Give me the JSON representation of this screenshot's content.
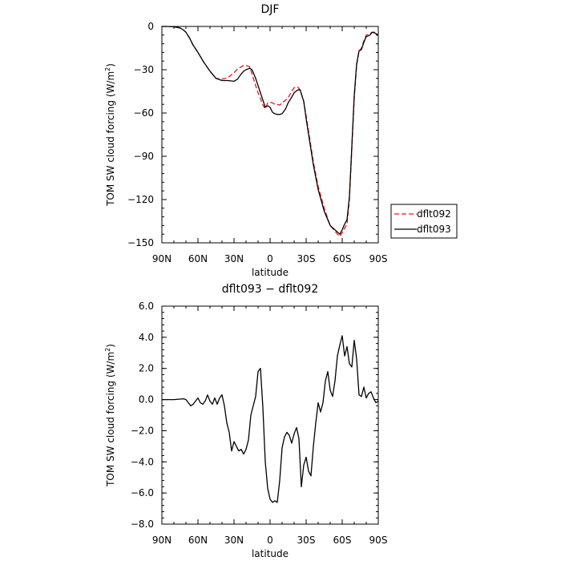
{
  "chart_data": [
    {
      "type": "line",
      "title": "DJF",
      "xlabel": "latitude",
      "ylabel": "TOM SW cloud forcing (W/m²)",
      "ylabel_parts": [
        "TOM SW cloud forcing (W/m",
        "2",
        ")"
      ],
      "xlim": [
        90,
        -90
      ],
      "ylim": [
        -150,
        0
      ],
      "x_ticks": [
        90,
        60,
        30,
        0,
        -30,
        -60,
        -90
      ],
      "x_tick_labels": [
        "90N",
        "60N",
        "30N",
        "0",
        "30S",
        "60S",
        "90S"
      ],
      "y_ticks": [
        0,
        -30,
        -60,
        -90,
        -120,
        -150
      ],
      "y_tick_labels": [
        "0",
        "−30",
        "−60",
        "−90",
        "−120",
        "−150"
      ],
      "legend": "right",
      "grid": false,
      "series": [
        {
          "name": "dflt092",
          "color": "#e41a1c",
          "dash": "6,3",
          "x": [
            90,
            85,
            80,
            75,
            72,
            70,
            67,
            64,
            60,
            55,
            50,
            45,
            40,
            35,
            30,
            27,
            25,
            22,
            20,
            17,
            15,
            12,
            10,
            8,
            6,
            4,
            2,
            0,
            -2,
            -4,
            -6,
            -8,
            -10,
            -13,
            -15,
            -18,
            -20,
            -23,
            -25,
            -28,
            -30,
            -33,
            -36,
            -40,
            -45,
            -50,
            -54,
            -56,
            -58,
            -60,
            -62,
            -64,
            -66,
            -68,
            -70,
            -72,
            -74,
            -76,
            -78,
            -80,
            -83,
            -85,
            -87,
            -90
          ],
          "y": [
            0,
            0,
            -0.3,
            -1,
            -2.5,
            -4,
            -8,
            -13,
            -18,
            -25,
            -31,
            -36,
            -36.5,
            -35.5,
            -32,
            -29.5,
            -28.5,
            -27,
            -27,
            -28,
            -33,
            -41,
            -46,
            -50,
            -54.5,
            -57,
            -53,
            -52.5,
            -53,
            -54,
            -54,
            -54.5,
            -53,
            -51,
            -49.5,
            -45,
            -42.5,
            -42,
            -44,
            -52,
            -62,
            -78,
            -94,
            -111,
            -126,
            -138,
            -142,
            -144,
            -145.5,
            -143,
            -140,
            -137,
            -120,
            -85,
            -50,
            -27,
            -17,
            -15,
            -10,
            -6,
            -5,
            -4,
            -4,
            -6
          ]
        },
        {
          "name": "dflt093",
          "color": "#000000",
          "dash": "",
          "x": [
            90,
            85,
            80,
            75,
            72,
            70,
            67,
            64,
            60,
            55,
            50,
            45,
            40,
            35,
            30,
            27,
            25,
            22,
            20,
            17,
            15,
            12,
            10,
            8,
            6,
            4,
            2,
            0,
            -2,
            -4,
            -6,
            -8,
            -10,
            -13,
            -15,
            -18,
            -20,
            -23,
            -25,
            -28,
            -30,
            -33,
            -36,
            -40,
            -45,
            -50,
            -54,
            -56,
            -58,
            -60,
            -62,
            -64,
            -66,
            -68,
            -70,
            -72,
            -74,
            -76,
            -78,
            -80,
            -83,
            -85,
            -87,
            -90
          ],
          "y": [
            0,
            0,
            -0.3,
            -1,
            -2.5,
            -4,
            -8,
            -13,
            -18,
            -25,
            -31,
            -36,
            -37.5,
            -37.5,
            -38,
            -36.5,
            -34,
            -31,
            -30,
            -29,
            -30,
            -36,
            -41,
            -46,
            -51,
            -56,
            -55,
            -56,
            -59.5,
            -60.5,
            -61,
            -61,
            -60.5,
            -57,
            -53,
            -49,
            -46,
            -44,
            -44,
            -52,
            -64,
            -80,
            -96,
            -113,
            -128,
            -138,
            -141,
            -142.5,
            -144,
            -141,
            -137,
            -134,
            -118,
            -83,
            -48,
            -26,
            -17,
            -16,
            -11,
            -7,
            -6,
            -4,
            -4.5,
            -6
          ]
        }
      ]
    },
    {
      "type": "line",
      "title": "dflt093 − dflt092",
      "xlabel": "latitude",
      "ylabel": "TOM SW cloud forcing (W/m²)",
      "ylabel_parts": [
        "TOM SW cloud forcing (W/m",
        "2",
        ")"
      ],
      "xlim": [
        90,
        -90
      ],
      "ylim": [
        -8,
        6
      ],
      "x_ticks": [
        90,
        60,
        30,
        0,
        -30,
        -60,
        -90
      ],
      "x_tick_labels": [
        "90N",
        "60N",
        "30N",
        "0",
        "30S",
        "60S",
        "90S"
      ],
      "y_ticks": [
        6,
        4,
        2,
        0,
        -2,
        -4,
        -6,
        -8
      ],
      "y_tick_labels": [
        "6.0",
        "4.0",
        "2.0",
        "0.0",
        "−2.0",
        "−4.0",
        "−6.0",
        "−8.0"
      ],
      "grid": false,
      "series": [
        {
          "color": "#000000",
          "x": [
            90,
            80,
            72,
            70,
            68,
            66,
            64,
            62,
            60,
            58,
            56,
            54,
            52,
            50,
            48,
            46,
            44,
            42,
            40,
            38,
            36,
            34,
            32,
            30,
            28,
            26,
            24,
            22,
            20,
            18,
            16,
            14,
            12,
            10,
            8,
            6,
            4,
            2,
            0,
            -2,
            -4,
            -6,
            -8,
            -10,
            -12,
            -14,
            -16,
            -18,
            -20,
            -22,
            -24,
            -26,
            -28,
            -30,
            -32,
            -34,
            -36,
            -38,
            -40,
            -42,
            -44,
            -46,
            -48,
            -50,
            -52,
            -54,
            -56,
            -58,
            -60,
            -62,
            -64,
            -66,
            -68,
            -70,
            -72,
            -74,
            -76,
            -78,
            -80,
            -82,
            -84,
            -86,
            -88,
            -90
          ],
          "y": [
            0,
            0,
            0.05,
            0,
            -0.2,
            -0.4,
            -0.3,
            -0.1,
            0.1,
            -0.2,
            -0.3,
            -0.1,
            0.3,
            -0.1,
            -0.3,
            0.1,
            -0.3,
            0.1,
            0.3,
            -0.4,
            -1.5,
            -2.1,
            -3.3,
            -2.7,
            -3.0,
            -3.3,
            -3.2,
            -3.5,
            -3.2,
            -2.6,
            -1.0,
            -0.4,
            0.2,
            1.8,
            2.0,
            -0.5,
            -4.0,
            -5.7,
            -6.4,
            -6.6,
            -6.5,
            -6.6,
            -5.2,
            -3.1,
            -2.4,
            -2.1,
            -2.3,
            -2.8,
            -2.2,
            -1.8,
            -2.5,
            -5.6,
            -4.2,
            -3.7,
            -4.6,
            -4.9,
            -3.0,
            -1.5,
            -0.2,
            -0.8,
            -0.2,
            1.2,
            1.8,
            0.6,
            0.2,
            1.2,
            2.8,
            3.5,
            4.1,
            2.8,
            3.4,
            2.3,
            2.1,
            3.8,
            2.6,
            0.3,
            0.2,
            0.8,
            0.1,
            0.4,
            0.5,
            0.1,
            -0.2,
            -0.1
          ]
        }
      ]
    }
  ]
}
